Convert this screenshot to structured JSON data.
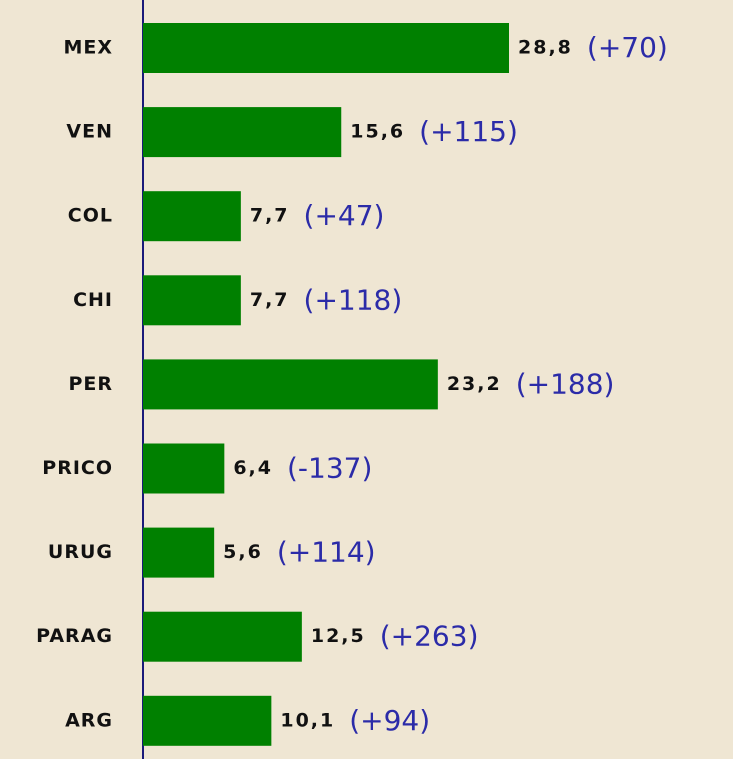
{
  "chart_data": {
    "type": "bar",
    "orientation": "horizontal",
    "categories": [
      "MEX",
      "VEN",
      "COL",
      "CHI",
      "PER",
      "PRICO",
      "URUG",
      "PARAG",
      "ARG"
    ],
    "values": [
      28.8,
      15.6,
      7.7,
      7.7,
      23.2,
      6.4,
      5.6,
      12.5,
      10.1
    ],
    "value_labels": [
      "28,8",
      "15,6",
      "7,7",
      "7,7",
      "23,2",
      "6,4",
      "5,6",
      "12,5",
      "10,1"
    ],
    "annotations": [
      "(+70)",
      "(+115)",
      "(+47)",
      "(+118)",
      "(+188)",
      "(-137)",
      "(+114)",
      "(+263)",
      "(+94)"
    ],
    "color": "#008000"
  }
}
